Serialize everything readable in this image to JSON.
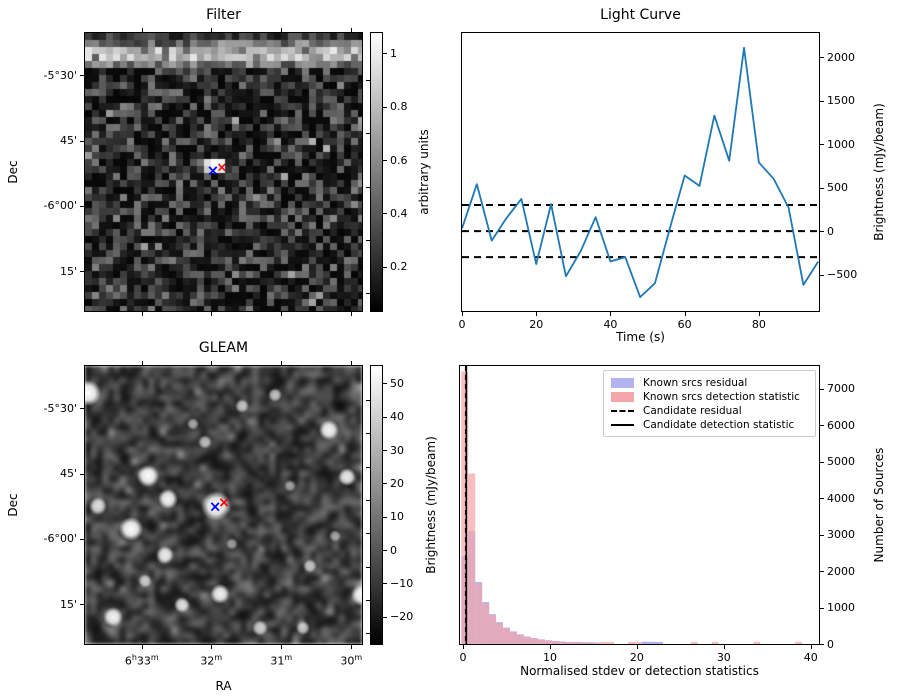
{
  "panels": {
    "filter": {
      "title": "Filter",
      "ylabel": "Dec",
      "yticks": [
        "-5°30'",
        "45'",
        "-6°00'",
        "15'"
      ],
      "colorbar": {
        "label": "arbitrary units",
        "ticks": [
          1.0,
          0.8,
          0.6,
          0.4,
          0.2
        ]
      },
      "markers": [
        {
          "name": "candidate-position",
          "symbol": "x",
          "color": "#0000ff",
          "fx": 0.462,
          "fy": 0.497,
          "size": 15
        },
        {
          "name": "known-source-position",
          "symbol": "x",
          "color": "#ff0000",
          "fx": 0.494,
          "fy": 0.487,
          "size": 13
        }
      ]
    },
    "gleam": {
      "title": "GLEAM",
      "xlabel": "RA",
      "ylabel": "Dec",
      "xticks": [
        "6h33m",
        "32m",
        "31m",
        "30m"
      ],
      "yticks": [
        "-5°30'",
        "45'",
        "-6°00'",
        "15'"
      ],
      "colorbar": {
        "label": "Brightness (mJy/beam)",
        "ticks": [
          50,
          40,
          30,
          20,
          10,
          0,
          -10,
          -20
        ]
      },
      "markers": [
        {
          "name": "candidate-position",
          "symbol": "x",
          "color": "#0000ff",
          "fx": 0.47,
          "fy": 0.507,
          "size": 15
        },
        {
          "name": "known-source-position",
          "symbol": "x",
          "color": "#ff0000",
          "fx": 0.502,
          "fy": 0.493,
          "size": 14
        }
      ]
    }
  },
  "chart_data": [
    {
      "type": "line",
      "title": "Light Curve",
      "xlabel": "Time (s)",
      "ylabel": "Brightness (mJy/beam)",
      "x": [
        0,
        4,
        8,
        12,
        16,
        20,
        24,
        28,
        32,
        36,
        40,
        44,
        48,
        52,
        56,
        60,
        64,
        68,
        72,
        76,
        80,
        84,
        88,
        92,
        96
      ],
      "y": [
        30,
        540,
        -110,
        150,
        370,
        -380,
        310,
        -520,
        -230,
        160,
        -350,
        -300,
        -760,
        -600,
        30,
        640,
        520,
        1330,
        810,
        2110,
        790,
        600,
        270,
        -620,
        -350
      ],
      "line_color": "#1f77b4",
      "hlines": [
        300,
        0,
        -300
      ],
      "hline_style": "dashed",
      "xlim": [
        0,
        96.2
      ],
      "ylim": [
        -920,
        2280
      ],
      "xticks": [
        0,
        20,
        40,
        60,
        80
      ],
      "yticks": [
        -500,
        0,
        500,
        1000,
        1500,
        2000
      ],
      "yaxis_side": "right",
      "grid": false
    },
    {
      "type": "bar",
      "subtype": "histogram",
      "title": "",
      "xlabel": "Normalised stdev or detection statistics",
      "ylabel": "Number of Sources",
      "bin_start": -0.2,
      "bin_width": 0.8,
      "series": [
        {
          "name": "Known srcs residual",
          "color": "#b3b3f0",
          "values": [
            2400,
            3100,
            1700,
            1150,
            820,
            600,
            450,
            345,
            265,
            205,
            160,
            128,
            103,
            84,
            70,
            58,
            60,
            55,
            50,
            40,
            0,
            0,
            0,
            0,
            0,
            0,
            65,
            60,
            55,
            0,
            0,
            0,
            0,
            0,
            0,
            0,
            0,
            0,
            0,
            0,
            0,
            0,
            0,
            0,
            0,
            0,
            0,
            0,
            0,
            0
          ]
        },
        {
          "name": "Known srcs detection statistic",
          "color": "#f5a6a9",
          "values": [
            7480,
            4680,
            1650,
            1100,
            800,
            570,
            430,
            330,
            255,
            200,
            155,
            122,
            97,
            78,
            63,
            52,
            44,
            38,
            33,
            28,
            60,
            55,
            0,
            0,
            60,
            55,
            0,
            0,
            0,
            0,
            0,
            0,
            0,
            60,
            0,
            0,
            60,
            0,
            0,
            0,
            0,
            0,
            60,
            0,
            0,
            0,
            0,
            0,
            60,
            0
          ]
        }
      ],
      "vlines": [
        {
          "name": "Candidate residual",
          "x": 0.31,
          "style": "dashed",
          "color": "#000000"
        },
        {
          "name": "Candidate detection statistic",
          "x": 0.38,
          "style": "solid",
          "color": "#000000"
        }
      ],
      "legend": [
        {
          "label": "Known srcs residual",
          "type": "patch",
          "color": "#b3b3f0"
        },
        {
          "label": "Known srcs detection statistic",
          "type": "patch",
          "color": "#f5a6a9"
        },
        {
          "label": "Candidate residual",
          "type": "line",
          "style": "dashed",
          "color": "#000000"
        },
        {
          "label": "Candidate detection statistic",
          "type": "line",
          "style": "solid",
          "color": "#000000"
        }
      ],
      "legend_position": "upper center-right",
      "xlim": [
        -0.35,
        40.95
      ],
      "ylim": [
        0,
        7630
      ],
      "xticks": [
        0,
        10,
        20,
        30,
        40
      ],
      "yticks": [
        0,
        1000,
        2000,
        3000,
        4000,
        5000,
        6000,
        7000
      ],
      "yaxis_side": "right",
      "grid": false
    }
  ]
}
